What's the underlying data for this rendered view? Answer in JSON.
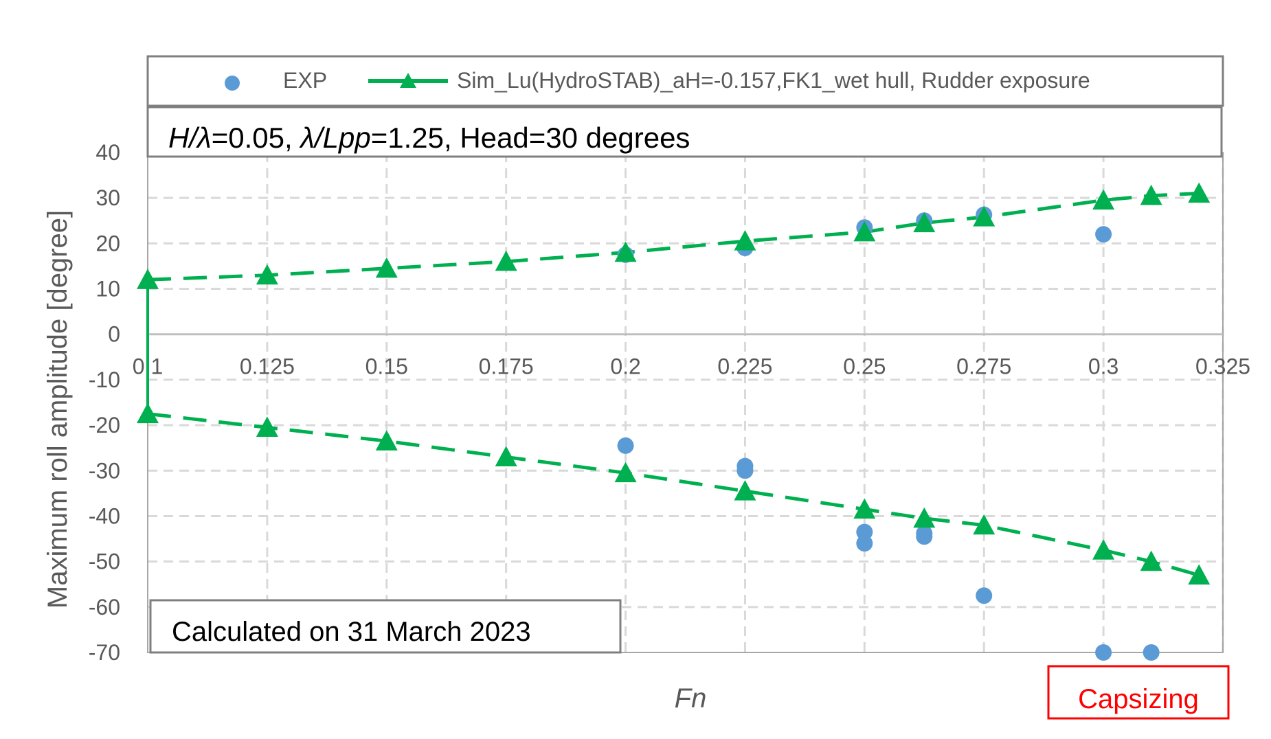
{
  "chart_data": {
    "type": "scatter",
    "xlabel": "Fn",
    "ylabel": "Maximum roll amplitude [degree]",
    "xlim": [
      0.1,
      0.325
    ],
    "ylim": [
      -70,
      40
    ],
    "x_ticks": [
      "0.1",
      "0.125",
      "0.15",
      "0.175",
      "0.2",
      "0.225",
      "0.25",
      "0.275",
      "0.3",
      "0.325"
    ],
    "y_ticks": [
      "40",
      "30",
      "20",
      "10",
      "0",
      "-10",
      "-20",
      "-30",
      "-40",
      "-50",
      "-60",
      "-70"
    ],
    "grid": true,
    "legend_position": "top",
    "series": [
      {
        "name": "EXP",
        "marker": "circle",
        "color": "#5B9BD5",
        "points": [
          [
            0.2,
            17.5
          ],
          [
            0.225,
            19
          ],
          [
            0.25,
            23.5
          ],
          [
            0.2625,
            25
          ],
          [
            0.275,
            26.3
          ],
          [
            0.3,
            22
          ],
          [
            0.2,
            -24.5
          ],
          [
            0.225,
            -29
          ],
          [
            0.225,
            -30
          ],
          [
            0.25,
            -43.5
          ],
          [
            0.25,
            -46
          ],
          [
            0.2625,
            -43.8
          ],
          [
            0.2625,
            -44.5
          ],
          [
            0.275,
            -57.5
          ],
          [
            0.3,
            -70
          ],
          [
            0.31,
            -70
          ]
        ]
      },
      {
        "name": "Sim_Lu(HydroSTAB)_aH=-0.157,FK1_wet hull, Rudder exposure",
        "marker": "triangle",
        "line": "dashed",
        "color": "#00B050",
        "x": [
          0.1,
          0.125,
          0.15,
          0.175,
          0.2,
          0.225,
          0.25,
          0.2625,
          0.275,
          0.3,
          0.31,
          0.32
        ],
        "upper": [
          12,
          13,
          14.5,
          16,
          18,
          20.5,
          22.5,
          24.5,
          25.8,
          29.5,
          30.5,
          31
        ],
        "lower": [
          -17.5,
          -20.5,
          -23.5,
          -27,
          -30.5,
          -34.5,
          -38.5,
          -40.5,
          -42,
          -47.5,
          -50,
          -53
        ]
      }
    ]
  },
  "annotations": {
    "condition": {
      "H": "H",
      "slash_lambda1": "/λ",
      "eq1": "=0.05, ",
      "lambda": "λ",
      "slash_lpp": "/Lpp",
      "eq2": "=1.25, Head=30 degrees"
    },
    "calculated": "Calculated on 31 March 2023",
    "capsizing": "Capsizing",
    "capsizing_color": "#FF0000"
  }
}
